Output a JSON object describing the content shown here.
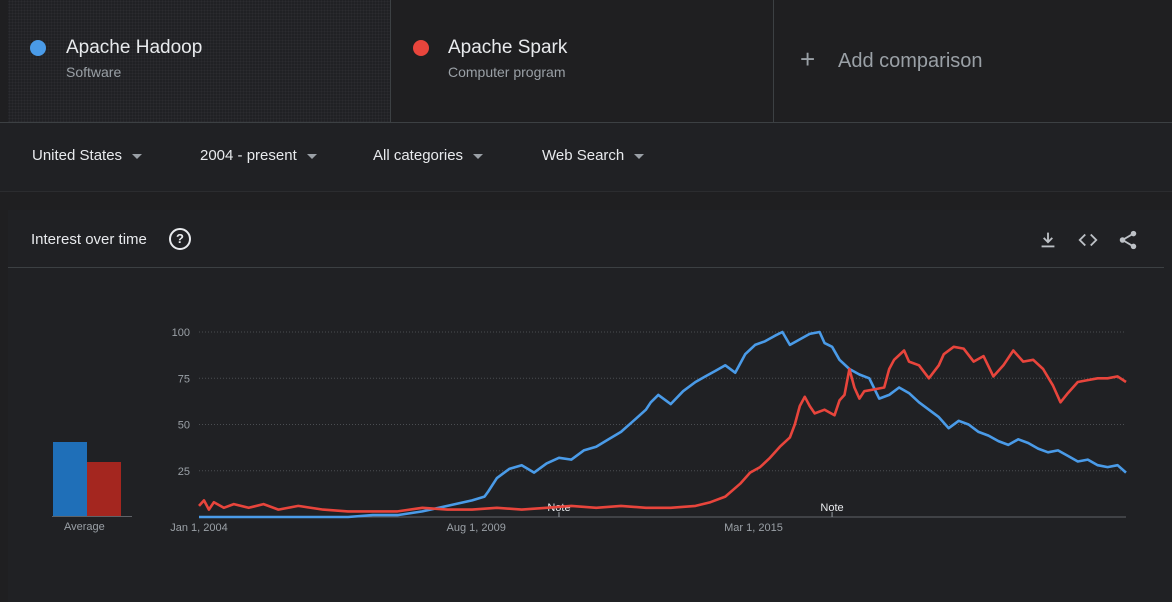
{
  "comparison": {
    "terms": [
      {
        "name": "Apache Hadoop",
        "type": "Software",
        "color": "#4a9be8"
      },
      {
        "name": "Apache Spark",
        "type": "Computer program",
        "color": "#e8453c"
      }
    ],
    "add_label": "Add comparison"
  },
  "filters": {
    "region": "United States",
    "time": "2004 - present",
    "category": "All categories",
    "search_type": "Web Search"
  },
  "card": {
    "title": "Interest over time",
    "help_icon": "question-circle-icon",
    "actions": [
      "download-icon",
      "embed-code-icon",
      "share-icon"
    ]
  },
  "averages": {
    "label": "Average",
    "values": [
      40,
      29
    ],
    "colors": [
      "#1f6fb8",
      "#a4261f"
    ]
  },
  "chart_data": {
    "type": "line",
    "x_ticks": [
      {
        "label": "Jan 1, 2004",
        "t": 2004.0
      },
      {
        "label": "Aug 1, 2009",
        "t": 2009.583
      },
      {
        "label": "Mar 1, 2015",
        "t": 2015.167
      }
    ],
    "ylim": [
      0,
      100
    ],
    "y_ticks": [
      25,
      50,
      75,
      100
    ],
    "notes": [
      {
        "label": "Note",
        "t": 2011.25
      },
      {
        "label": "Note",
        "t": 2016.75
      }
    ],
    "grid": true,
    "series": [
      {
        "name": "Apache Hadoop",
        "color": "#4a9be8",
        "points": [
          [
            2004.0,
            0
          ],
          [
            2005.0,
            0
          ],
          [
            2006.0,
            0
          ],
          [
            2007.0,
            0
          ],
          [
            2007.5,
            1
          ],
          [
            2008.0,
            1
          ],
          [
            2008.5,
            3
          ],
          [
            2009.0,
            6
          ],
          [
            2009.5,
            9
          ],
          [
            2009.75,
            11
          ],
          [
            2009.83,
            14
          ],
          [
            2010.0,
            21
          ],
          [
            2010.25,
            26
          ],
          [
            2010.5,
            28
          ],
          [
            2010.75,
            24
          ],
          [
            2011.0,
            29
          ],
          [
            2011.25,
            32
          ],
          [
            2011.5,
            31
          ],
          [
            2011.75,
            36
          ],
          [
            2012.0,
            38
          ],
          [
            2012.25,
            42
          ],
          [
            2012.5,
            46
          ],
          [
            2012.75,
            52
          ],
          [
            2013.0,
            58
          ],
          [
            2013.1,
            62
          ],
          [
            2013.25,
            66
          ],
          [
            2013.5,
            61
          ],
          [
            2013.75,
            68
          ],
          [
            2014.0,
            73
          ],
          [
            2014.2,
            76
          ],
          [
            2014.4,
            79
          ],
          [
            2014.6,
            82
          ],
          [
            2014.8,
            78
          ],
          [
            2015.0,
            88
          ],
          [
            2015.2,
            93
          ],
          [
            2015.4,
            95
          ],
          [
            2015.6,
            98
          ],
          [
            2015.75,
            100
          ],
          [
            2015.9,
            93
          ],
          [
            2016.1,
            96
          ],
          [
            2016.3,
            99
          ],
          [
            2016.5,
            100
          ],
          [
            2016.6,
            94
          ],
          [
            2016.75,
            92
          ],
          [
            2016.9,
            85
          ],
          [
            2017.1,
            80
          ],
          [
            2017.3,
            77
          ],
          [
            2017.5,
            75
          ],
          [
            2017.7,
            64
          ],
          [
            2017.9,
            66
          ],
          [
            2018.1,
            70
          ],
          [
            2018.3,
            67
          ],
          [
            2018.5,
            62
          ],
          [
            2018.7,
            58
          ],
          [
            2018.9,
            54
          ],
          [
            2019.1,
            48
          ],
          [
            2019.3,
            52
          ],
          [
            2019.5,
            50
          ],
          [
            2019.7,
            46
          ],
          [
            2019.9,
            44
          ],
          [
            2020.1,
            41
          ],
          [
            2020.3,
            39
          ],
          [
            2020.5,
            42
          ],
          [
            2020.7,
            40
          ],
          [
            2020.9,
            37
          ],
          [
            2021.1,
            35
          ],
          [
            2021.3,
            36
          ],
          [
            2021.5,
            33
          ],
          [
            2021.7,
            30
          ],
          [
            2021.9,
            31
          ],
          [
            2022.1,
            28
          ],
          [
            2022.3,
            27
          ],
          [
            2022.5,
            28
          ],
          [
            2022.67,
            24
          ]
        ]
      },
      {
        "name": "Apache Spark",
        "color": "#e8453c",
        "points": [
          [
            2004.0,
            6
          ],
          [
            2004.1,
            9
          ],
          [
            2004.2,
            4
          ],
          [
            2004.3,
            8
          ],
          [
            2004.5,
            5
          ],
          [
            2004.7,
            7
          ],
          [
            2005.0,
            5
          ],
          [
            2005.3,
            7
          ],
          [
            2005.6,
            4
          ],
          [
            2006.0,
            6
          ],
          [
            2006.5,
            4
          ],
          [
            2007.0,
            3
          ],
          [
            2007.5,
            3
          ],
          [
            2008.0,
            3
          ],
          [
            2008.5,
            5
          ],
          [
            2009.0,
            4
          ],
          [
            2009.5,
            4
          ],
          [
            2010.0,
            5
          ],
          [
            2010.5,
            4
          ],
          [
            2011.0,
            5
          ],
          [
            2011.5,
            6
          ],
          [
            2012.0,
            5
          ],
          [
            2012.5,
            6
          ],
          [
            2013.0,
            5
          ],
          [
            2013.5,
            5
          ],
          [
            2014.0,
            6
          ],
          [
            2014.3,
            8
          ],
          [
            2014.6,
            11
          ],
          [
            2014.9,
            18
          ],
          [
            2015.1,
            24
          ],
          [
            2015.3,
            27
          ],
          [
            2015.5,
            32
          ],
          [
            2015.7,
            38
          ],
          [
            2015.9,
            43
          ],
          [
            2016.0,
            50
          ],
          [
            2016.1,
            60
          ],
          [
            2016.2,
            65
          ],
          [
            2016.3,
            60
          ],
          [
            2016.4,
            56
          ],
          [
            2016.6,
            58
          ],
          [
            2016.8,
            55
          ],
          [
            2016.9,
            63
          ],
          [
            2017.0,
            66
          ],
          [
            2017.1,
            80
          ],
          [
            2017.2,
            70
          ],
          [
            2017.3,
            64
          ],
          [
            2017.4,
            68
          ],
          [
            2017.6,
            69
          ],
          [
            2017.8,
            70
          ],
          [
            2017.9,
            80
          ],
          [
            2018.0,
            85
          ],
          [
            2018.2,
            90
          ],
          [
            2018.3,
            84
          ],
          [
            2018.5,
            82
          ],
          [
            2018.7,
            75
          ],
          [
            2018.9,
            82
          ],
          [
            2019.0,
            88
          ],
          [
            2019.2,
            92
          ],
          [
            2019.4,
            91
          ],
          [
            2019.6,
            84
          ],
          [
            2019.8,
            87
          ],
          [
            2020.0,
            76
          ],
          [
            2020.2,
            82
          ],
          [
            2020.4,
            90
          ],
          [
            2020.6,
            84
          ],
          [
            2020.8,
            85
          ],
          [
            2021.0,
            80
          ],
          [
            2021.2,
            71
          ],
          [
            2021.35,
            62
          ],
          [
            2021.5,
            67
          ],
          [
            2021.7,
            73
          ],
          [
            2021.9,
            74
          ],
          [
            2022.1,
            75
          ],
          [
            2022.3,
            75
          ],
          [
            2022.5,
            76
          ],
          [
            2022.67,
            73
          ]
        ]
      }
    ]
  }
}
